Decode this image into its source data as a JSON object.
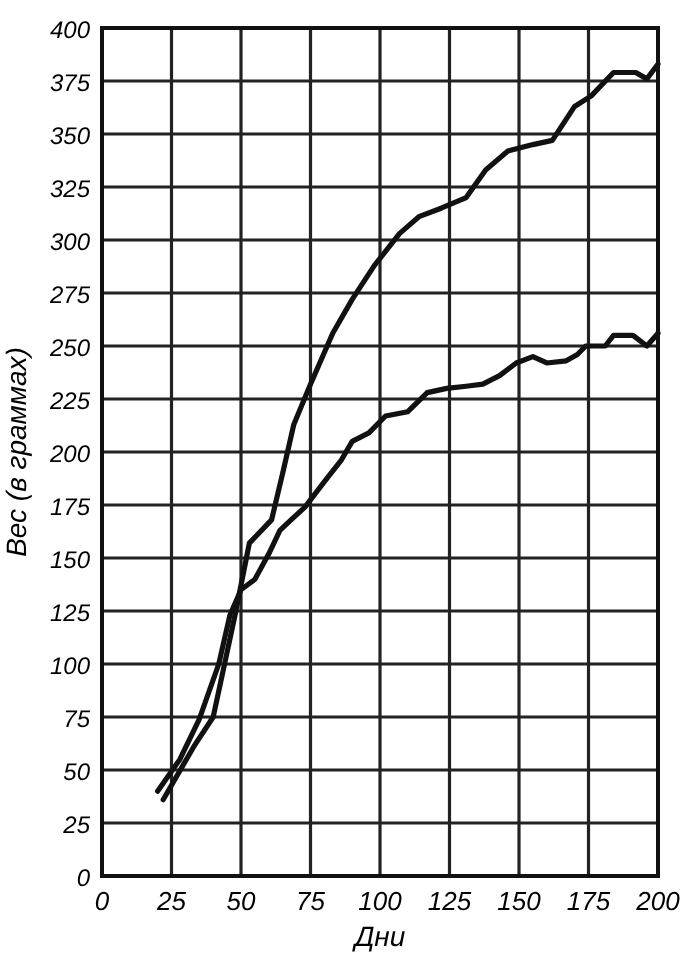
{
  "chart_data": {
    "type": "line",
    "xlabel": "Дни",
    "ylabel": "Вес (в граммах)",
    "xlim": [
      0,
      200
    ],
    "ylim": [
      0,
      400
    ],
    "xticks": [
      0,
      25,
      50,
      75,
      100,
      125,
      150,
      175,
      200
    ],
    "yticks": [
      0,
      25,
      50,
      75,
      100,
      125,
      150,
      175,
      200,
      225,
      250,
      275,
      300,
      325,
      350,
      375,
      400
    ],
    "grid": true,
    "marker": "none",
    "line_style": "solid",
    "series": [
      {
        "color": "#111111",
        "x": [
          22,
          33,
          40,
          48,
          53,
          61,
          65,
          69,
          75,
          83,
          90,
          98,
          107,
          114,
          122,
          131,
          138,
          146,
          155,
          162,
          170,
          176,
          184,
          192,
          196,
          200
        ],
        "values": [
          36,
          61,
          75,
          124,
          157,
          168,
          190,
          213,
          232,
          256,
          272,
          288,
          303,
          311,
          315,
          320,
          333,
          342,
          345,
          347,
          363,
          368,
          379,
          379,
          376,
          383
        ]
      },
      {
        "color": "#111111",
        "x": [
          20,
          28,
          35,
          42,
          46,
          50,
          55,
          60,
          64,
          68,
          73,
          80,
          86,
          90,
          96,
          102,
          110,
          117,
          124,
          131,
          137,
          143,
          149,
          155,
          160,
          167,
          171,
          174,
          181,
          184,
          191,
          196,
          200
        ],
        "values": [
          40,
          55,
          74,
          100,
          123,
          135,
          140,
          152,
          163,
          168,
          174,
          186,
          196,
          205,
          209,
          217,
          219,
          228,
          230,
          231,
          232,
          236,
          242,
          245,
          242,
          243,
          246,
          250,
          250,
          255,
          255,
          250,
          256
        ]
      }
    ]
  }
}
